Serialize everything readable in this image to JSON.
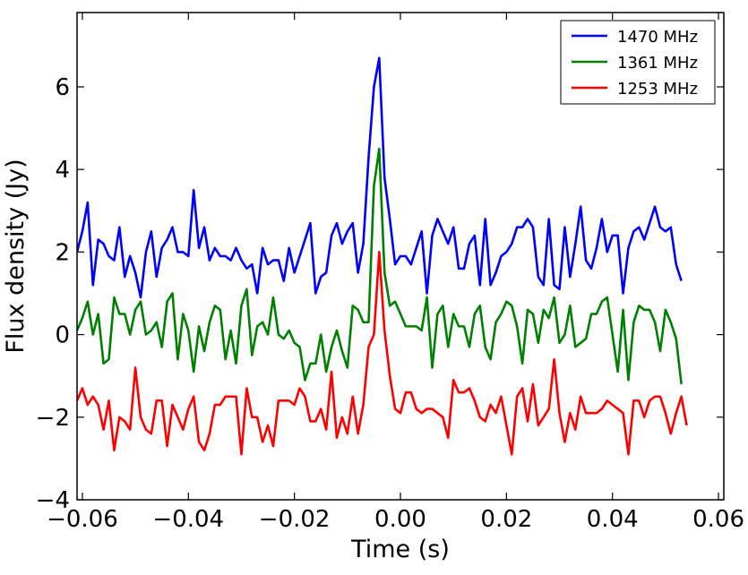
{
  "chart_data": {
    "type": "line",
    "title": "",
    "xlabel": "Time (s)",
    "ylabel": "Flux density (Jy)",
    "xlim": [
      -0.061,
      0.061
    ],
    "ylim": [
      -4,
      7.8
    ],
    "xticks": [
      -0.06,
      -0.04,
      -0.02,
      0.0,
      0.02,
      0.04,
      0.06
    ],
    "xtick_labels": [
      "−0.06",
      "−0.04",
      "−0.02",
      "0.00",
      "0.02",
      "0.04",
      "0.06"
    ],
    "yticks": [
      -4,
      -2,
      0,
      2,
      4,
      6
    ],
    "ytick_labels": [
      "−4",
      "−2",
      "0",
      "2",
      "4",
      "6"
    ],
    "grid": false,
    "legend_position": "top-right",
    "x_start": -0.061,
    "x_step": 0.001,
    "series": [
      {
        "name": "1470 MHz",
        "color": "#0000ff",
        "values": [
          2.0,
          2.5,
          3.2,
          1.2,
          2.3,
          2.2,
          1.9,
          1.8,
          2.6,
          1.4,
          1.9,
          1.5,
          0.9,
          2.0,
          2.5,
          1.4,
          2.1,
          2.3,
          2.6,
          2.0,
          2.0,
          1.9,
          3.5,
          2.1,
          2.6,
          1.8,
          2.1,
          1.9,
          1.9,
          1.8,
          2.1,
          1.8,
          1.6,
          1.7,
          1.0,
          2.1,
          1.7,
          1.8,
          1.8,
          1.3,
          2.1,
          1.5,
          1.9,
          2.3,
          2.7,
          1.0,
          1.4,
          1.5,
          2.4,
          2.7,
          2.2,
          2.5,
          2.7,
          1.5,
          2.2,
          4.3,
          6.0,
          6.7,
          3.8,
          2.8,
          1.7,
          1.9,
          1.9,
          1.7,
          2.1,
          2.5,
          1.0,
          2.4,
          2.8,
          2.5,
          2.2,
          2.6,
          1.6,
          1.6,
          2.2,
          2.4,
          1.2,
          2.8,
          1.2,
          1.5,
          1.9,
          2.0,
          2.2,
          2.6,
          2.6,
          2.8,
          2.6,
          1.4,
          1.2,
          2.8,
          1.2,
          1.1,
          2.6,
          1.4,
          2.2,
          3.1,
          1.8,
          1.6,
          2.1,
          2.8,
          2.0,
          2.4,
          2.4,
          1.0,
          2.1,
          2.5,
          2.6,
          2.3,
          2.7,
          3.1,
          2.6,
          2.5,
          2.6,
          1.7,
          1.3
        ]
      },
      {
        "name": "1361 MHz",
        "color": "#008000",
        "values": [
          0.1,
          0.4,
          0.8,
          0.0,
          0.5,
          -0.7,
          -0.6,
          0.9,
          0.5,
          0.5,
          0.0,
          0.6,
          0.8,
          0.0,
          0.1,
          0.3,
          -0.3,
          0.8,
          1.0,
          -0.6,
          0.5,
          0.1,
          -0.9,
          0.2,
          -0.4,
          0.3,
          0.7,
          0.6,
          -0.6,
          0.1,
          -0.7,
          0.7,
          1.1,
          -0.5,
          0.2,
          0.3,
          0.0,
          0.9,
          0.0,
          -0.1,
          0.1,
          -0.2,
          -0.3,
          -1.1,
          -0.7,
          -0.7,
          -0.0,
          -0.9,
          -0.3,
          0.1,
          -0.4,
          -0.8,
          0.7,
          0.6,
          0.3,
          0.3,
          3.6,
          4.5,
          1.5,
          0.7,
          0.8,
          0.5,
          0.2,
          0.2,
          0.2,
          0.1,
          0.9,
          -0.8,
          0.5,
          0.7,
          -0.3,
          0.5,
          0.2,
          0.2,
          -0.3,
          0.5,
          0.7,
          -0.3,
          -0.6,
          0.3,
          0.5,
          0.8,
          0.7,
          0.2,
          -0.7,
          0.6,
          0.5,
          -0.2,
          0.6,
          0.4,
          0.9,
          -0.2,
          0.0,
          0.7,
          -0.3,
          -0.2,
          -0.1,
          0.5,
          0.5,
          0.8,
          0.9,
          0.0,
          -0.9,
          0.6,
          -1.1,
          0.3,
          0.7,
          0.6,
          0.6,
          0.3,
          -0.4,
          0.6,
          0.3,
          -0.1,
          -1.2
        ]
      },
      {
        "name": "1253 MHz",
        "color": "#ff0000",
        "values": [
          -1.6,
          -1.3,
          -1.7,
          -1.5,
          -1.7,
          -2.3,
          -1.6,
          -2.8,
          -2.0,
          -2.1,
          -2.3,
          -0.8,
          -2.0,
          -2.3,
          -2.4,
          -1.6,
          -1.6,
          -2.7,
          -1.7,
          -2.0,
          -2.3,
          -1.8,
          -1.5,
          -2.6,
          -2.8,
          -2.4,
          -1.7,
          -1.7,
          -1.5,
          -1.5,
          -1.5,
          -2.9,
          -1.3,
          -2.0,
          -2.0,
          -2.6,
          -2.2,
          -2.7,
          -1.6,
          -1.6,
          -1.6,
          -1.7,
          -1.3,
          -1.5,
          -2.1,
          -2.1,
          -1.8,
          -2.3,
          -0.9,
          -2.5,
          -2.0,
          -2.4,
          -1.5,
          -2.4,
          -1.7,
          -0.3,
          0.0,
          2.0,
          0.1,
          -1.0,
          -1.8,
          -1.9,
          -1.4,
          -1.4,
          -1.8,
          -1.9,
          -1.8,
          -1.8,
          -1.9,
          -2.0,
          -2.5,
          -1.1,
          -1.4,
          -1.4,
          -1.3,
          -1.6,
          -2.0,
          -2.1,
          -1.7,
          -1.9,
          -1.5,
          -2.2,
          -2.9,
          -1.5,
          -1.3,
          -2.1,
          -1.2,
          -2.2,
          -2.0,
          -1.8,
          -0.6,
          -1.9,
          -2.6,
          -1.9,
          -2.3,
          -1.5,
          -1.9,
          -1.9,
          -1.9,
          -1.8,
          -1.6,
          -1.7,
          -1.8,
          -1.9,
          -2.9,
          -1.6,
          -1.6,
          -2.0,
          -1.6,
          -1.5,
          -1.5,
          -1.9,
          -2.4,
          -1.9,
          -1.5,
          -2.2
        ]
      }
    ]
  }
}
